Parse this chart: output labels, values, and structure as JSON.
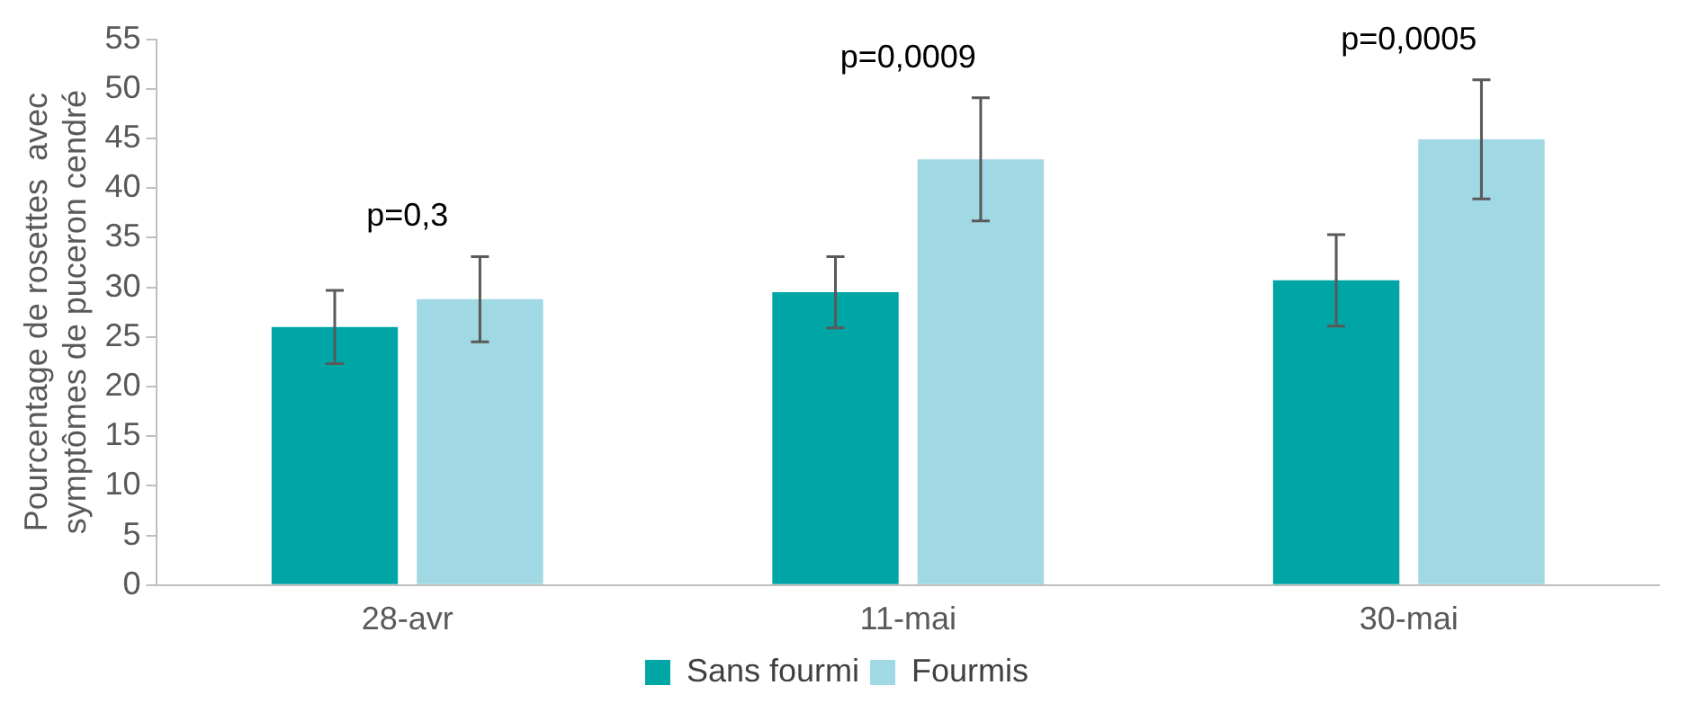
{
  "chart_data": {
    "type": "bar",
    "ylabel": "Pourcentage de rosettes  avec symptômes de puceron cendré",
    "categories": [
      "28-avr",
      "11-mai",
      "30-mai"
    ],
    "series": [
      {
        "name": "Sans fourmi",
        "color": "#00a5a5",
        "values": [
          26.0,
          29.5,
          30.7
        ],
        "errors": [
          3.7,
          3.6,
          4.6
        ]
      },
      {
        "name": "Fourmis",
        "color": "#a0d8e4",
        "values": [
          28.8,
          42.9,
          44.9
        ],
        "errors": [
          4.3,
          6.2,
          6.0
        ]
      }
    ],
    "ylim": [
      0,
      55
    ],
    "yticks": [
      0,
      5,
      10,
      15,
      20,
      25,
      30,
      35,
      40,
      45,
      50,
      55
    ],
    "grid": false,
    "legend": "bottom",
    "annotations": [
      "p=0,3",
      "p=0,0009",
      "p=0,0005"
    ]
  }
}
